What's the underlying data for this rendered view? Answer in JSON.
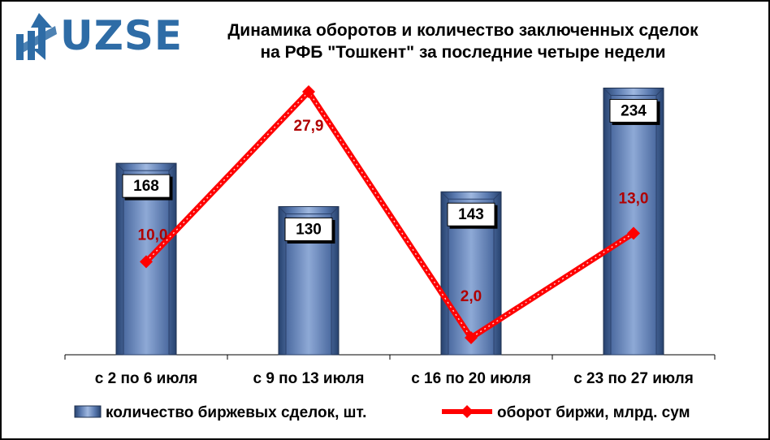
{
  "logo": {
    "text": "UZSE"
  },
  "title_lines": [
    "Динамика оборотов и количество заключенных сделок",
    "на РФБ \"Тошкент\" за последние четыре недели"
  ],
  "chart_data": {
    "type": "bar",
    "categories": [
      "с 2 по 6 июля",
      "с 9 по 13 июля",
      "с 16 по 20 июля",
      "с 23 по 27 июля"
    ],
    "series": [
      {
        "name": "количество биржевых сделок, шт.",
        "type": "bar",
        "values": [
          168,
          130,
          143,
          234
        ],
        "labels": [
          "168",
          "130",
          "143",
          "234"
        ],
        "color": "#6f8fc4"
      },
      {
        "name": "оборот биржи, млрд. сум",
        "type": "line",
        "values": [
          10.0,
          27.9,
          2.0,
          13.0
        ],
        "labels": [
          "10,0",
          "27,9",
          "2,0",
          "13,0"
        ],
        "color": "#ff0000"
      }
    ],
    "grid": false,
    "legend_position": "bottom",
    "colors": {
      "bar": "#6f8fc4",
      "line": "#ff0000",
      "line_label": "#b00000"
    }
  }
}
